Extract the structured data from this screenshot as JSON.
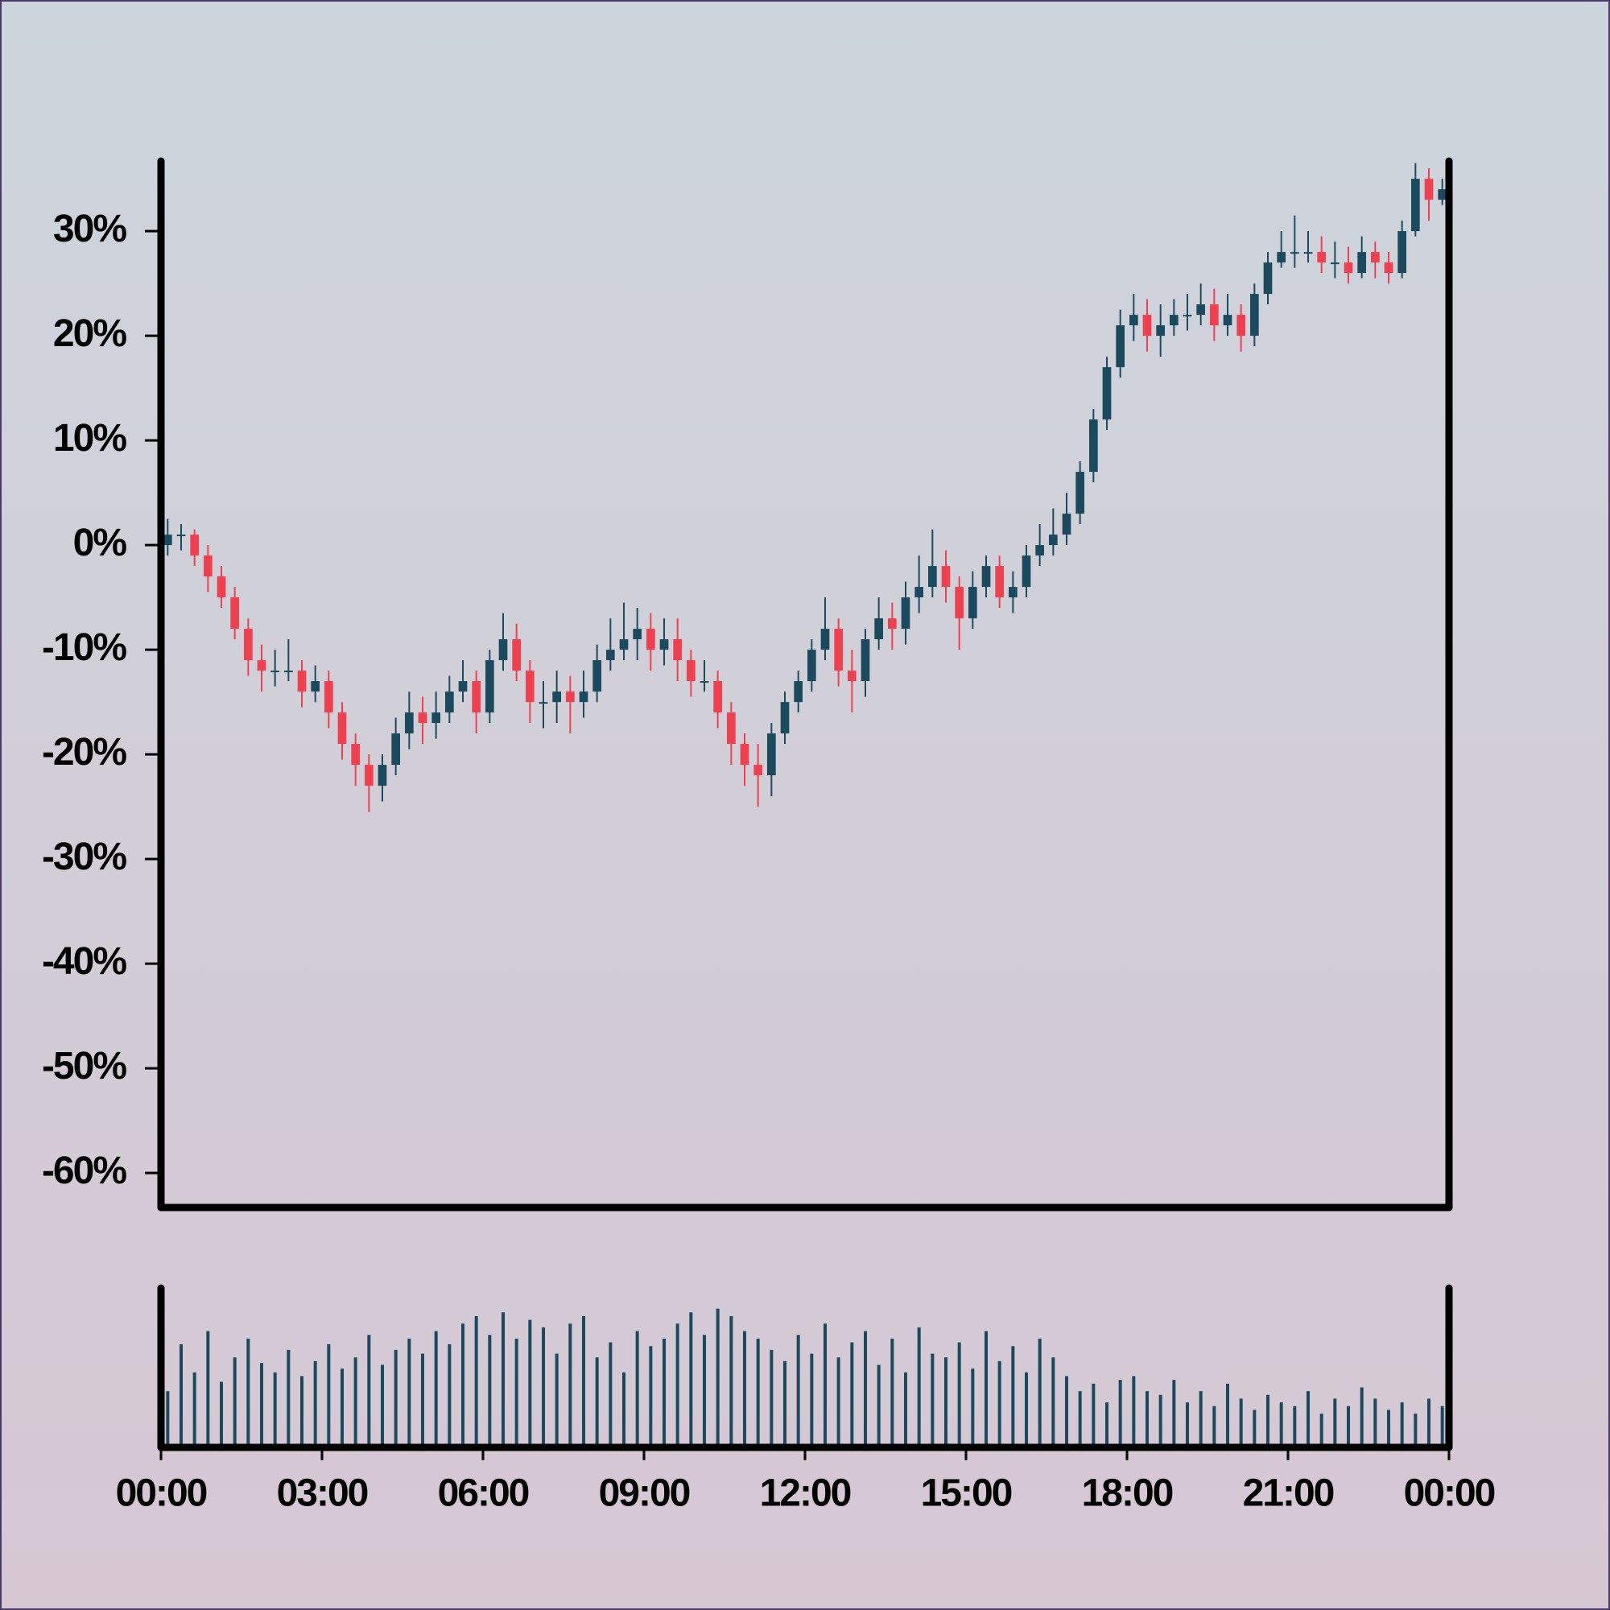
{
  "chart_data": {
    "type": "candlestick",
    "up_color": "#1b4a5e",
    "down_color": "#f0404f",
    "volume_color": "#1b4a5e",
    "xlim": [
      0,
      24
    ],
    "xticks": [
      {
        "value": 0,
        "label": "00:00"
      },
      {
        "value": 3,
        "label": "03:00"
      },
      {
        "value": 6,
        "label": "06:00"
      },
      {
        "value": 9,
        "label": "09:00"
      },
      {
        "value": 12,
        "label": "12:00"
      },
      {
        "value": 15,
        "label": "15:00"
      },
      {
        "value": 18,
        "label": "18:00"
      },
      {
        "value": 21,
        "label": "21:00"
      },
      {
        "value": 24,
        "label": "00:00"
      }
    ],
    "ylim": [
      -63.3,
      36.7
    ],
    "yticks": [
      {
        "value": -60,
        "label": "-60%"
      },
      {
        "value": -50,
        "label": "-50%"
      },
      {
        "value": -40,
        "label": "-40%"
      },
      {
        "value": -30,
        "label": "-30%"
      },
      {
        "value": -20,
        "label": "-20%"
      },
      {
        "value": -10,
        "label": "-10%"
      },
      {
        "value": 0,
        "label": "0%"
      },
      {
        "value": 10,
        "label": "10%"
      },
      {
        "value": 20,
        "label": "20%"
      },
      {
        "value": 30,
        "label": "30%"
      }
    ],
    "volume_ylim": [
      0,
      85
    ],
    "x": [
      0.125,
      0.375,
      0.625,
      0.875,
      1.125,
      1.375,
      1.625,
      1.875,
      2.125,
      2.375,
      2.625,
      2.875,
      3.125,
      3.375,
      3.625,
      3.875,
      4.125,
      4.375,
      4.625,
      4.875,
      5.125,
      5.375,
      5.625,
      5.875,
      6.125,
      6.375,
      6.625,
      6.875,
      7.125,
      7.375,
      7.625,
      7.875,
      8.125,
      8.375,
      8.625,
      8.875,
      9.125,
      9.375,
      9.625,
      9.875,
      10.125,
      10.375,
      10.625,
      10.875,
      11.125,
      11.375,
      11.625,
      11.875,
      12.125,
      12.375,
      12.625,
      12.875,
      13.125,
      13.375,
      13.625,
      13.875,
      14.125,
      14.375,
      14.625,
      14.875,
      15.125,
      15.375,
      15.625,
      15.875,
      16.125,
      16.375,
      16.625,
      16.875,
      17.125,
      17.375,
      17.625,
      17.875,
      18.125,
      18.375,
      18.625,
      18.875,
      19.125,
      19.375,
      19.625,
      19.875,
      20.125,
      20.375,
      20.625,
      20.875,
      21.125,
      21.375,
      21.625,
      21.875,
      22.125,
      22.375,
      22.625,
      22.875,
      23.125,
      23.375,
      23.625,
      23.875
    ],
    "open": [
      0,
      1,
      1,
      -1,
      -3,
      -5,
      -8,
      -11,
      -12,
      -12,
      -12,
      -14,
      -13,
      -16,
      -19,
      -21,
      -23,
      -21,
      -18,
      -16,
      -17,
      -16,
      -14,
      -13,
      -16,
      -11,
      -9,
      -12,
      -15,
      -15,
      -14,
      -15,
      -14,
      -11,
      -10,
      -9,
      -8,
      -10,
      -9,
      -11,
      -13,
      -13,
      -16,
      -19,
      -21,
      -22,
      -18,
      -15,
      -13,
      -10,
      -8,
      -12,
      -13,
      -9,
      -7,
      -8,
      -5,
      -4,
      -2,
      -4,
      -7,
      -4,
      -2,
      -5,
      -4,
      -1,
      0,
      1,
      3,
      7,
      12,
      17,
      21,
      22,
      20,
      21,
      22,
      22,
      23,
      21,
      22,
      20,
      24,
      27,
      28,
      28,
      28,
      27,
      27,
      26,
      28,
      27,
      26,
      30,
      35,
      33
    ],
    "high": [
      2.5,
      2,
      1.5,
      0,
      -2,
      -4,
      -7,
      -9.5,
      -10,
      -9,
      -11,
      -11.5,
      -12,
      -15,
      -18,
      -20,
      -20,
      -16.5,
      -14,
      -14.5,
      -14,
      -12.5,
      -11,
      -12,
      -10,
      -6.5,
      -7.5,
      -11,
      -13,
      -12,
      -12.5,
      -12,
      -9.5,
      -7,
      -5.5,
      -6,
      -6.5,
      -7,
      -7,
      -10,
      -11,
      -12,
      -15,
      -18,
      -19,
      -17,
      -14,
      -12,
      -9,
      -5,
      -7,
      -10,
      -8,
      -5,
      -5.5,
      -3.5,
      -1,
      1.5,
      -0.5,
      -3,
      -2.5,
      -1,
      -1,
      -2.5,
      0,
      2,
      3.5,
      5,
      8,
      13,
      18,
      22.5,
      24,
      23.5,
      23,
      23.5,
      24,
      25,
      24.5,
      24,
      23,
      25,
      28,
      30,
      31.5,
      30,
      29.5,
      29,
      28.5,
      29.5,
      29,
      28,
      31,
      36.5,
      36,
      35
    ],
    "low": [
      -1,
      -0.5,
      -2,
      -4.5,
      -6,
      -9,
      -12.5,
      -14,
      -13.5,
      -13,
      -15.5,
      -15,
      -17.5,
      -20.5,
      -23,
      -25.5,
      -24.5,
      -22,
      -19.5,
      -19,
      -18.5,
      -17,
      -15,
      -18,
      -17,
      -12,
      -13,
      -17,
      -17.5,
      -17,
      -18,
      -16.5,
      -15,
      -12,
      -11,
      -11,
      -12,
      -11.5,
      -13,
      -14.5,
      -14,
      -17.5,
      -21,
      -23,
      -25,
      -24,
      -19,
      -16,
      -14,
      -11,
      -13.5,
      -16,
      -14.5,
      -10,
      -10,
      -9.5,
      -6.5,
      -5,
      -5.5,
      -10,
      -8,
      -5,
      -6,
      -6.5,
      -5,
      -2,
      -1,
      0,
      2,
      6,
      11,
      16,
      19.5,
      18.5,
      18,
      20,
      20.5,
      21,
      19.5,
      20,
      18.5,
      19,
      23,
      26.5,
      26.5,
      27,
      26,
      25.5,
      25,
      25.5,
      25.5,
      25,
      25.5,
      29.5,
      31,
      32.5
    ],
    "close": [
      1,
      1,
      -1,
      -3,
      -5,
      -8,
      -11,
      -12,
      -12,
      -12,
      -14,
      -13,
      -16,
      -19,
      -21,
      -23,
      -21,
      -18,
      -16,
      -17,
      -16,
      -14,
      -13,
      -16,
      -11,
      -9,
      -12,
      -15,
      -15,
      -14,
      -15,
      -14,
      -11,
      -10,
      -9,
      -8,
      -10,
      -9,
      -11,
      -13,
      -13,
      -16,
      -19,
      -21,
      -22,
      -18,
      -15,
      -13,
      -10,
      -8,
      -12,
      -13,
      -9,
      -7,
      -8,
      -5,
      -4,
      -2,
      -4,
      -7,
      -4,
      -2,
      -5,
      -4,
      -1,
      0,
      1,
      3,
      7,
      12,
      17,
      21,
      22,
      20,
      21,
      22,
      22,
      23,
      21,
      22,
      20,
      24,
      27,
      28,
      28,
      28,
      27,
      27,
      26,
      28,
      27,
      26,
      30,
      35,
      33,
      34
    ],
    "volume": [
      30,
      55,
      40,
      62,
      35,
      48,
      58,
      45,
      40,
      52,
      38,
      46,
      55,
      42,
      48,
      60,
      44,
      52,
      58,
      50,
      62,
      55,
      66,
      70,
      60,
      72,
      58,
      68,
      64,
      50,
      66,
      70,
      48,
      56,
      40,
      62,
      54,
      58,
      66,
      72,
      60,
      74,
      70,
      62,
      58,
      52,
      46,
      60,
      50,
      66,
      48,
      56,
      62,
      44,
      58,
      40,
      64,
      50,
      48,
      56,
      42,
      62,
      46,
      54,
      40,
      58,
      48,
      38,
      30,
      34,
      24,
      36,
      38,
      30,
      28,
      36,
      24,
      30,
      22,
      34,
      26,
      20,
      28,
      24,
      22,
      30,
      18,
      26,
      22,
      32,
      26,
      20,
      24,
      18,
      26,
      22
    ]
  }
}
